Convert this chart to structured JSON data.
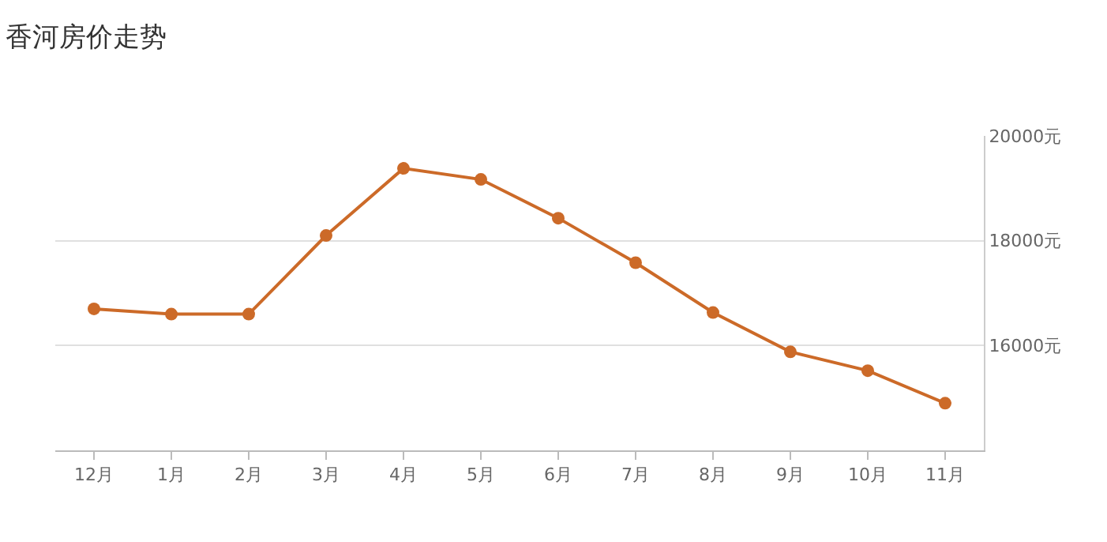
{
  "chart_data": {
    "type": "line",
    "title": "香河房价走势",
    "categories": [
      "12月",
      "1月",
      "2月",
      "3月",
      "4月",
      "5月",
      "6月",
      "7月",
      "8月",
      "9月",
      "10月",
      "11月"
    ],
    "series": [
      {
        "color": "#cc6a28",
        "values": [
          16700,
          16600,
          16600,
          18100,
          19380,
          19170,
          18430,
          17580,
          16630,
          15880,
          15520,
          14900
        ]
      }
    ],
    "ylim": [
      14000,
      20000
    ],
    "yticks": [
      {
        "value": 16000,
        "label": "16000元"
      },
      {
        "value": 18000,
        "label": "18000元"
      },
      {
        "value": 20000,
        "label": "20000元"
      }
    ],
    "grid": "y",
    "marker": "circle",
    "line_style": "solid"
  }
}
